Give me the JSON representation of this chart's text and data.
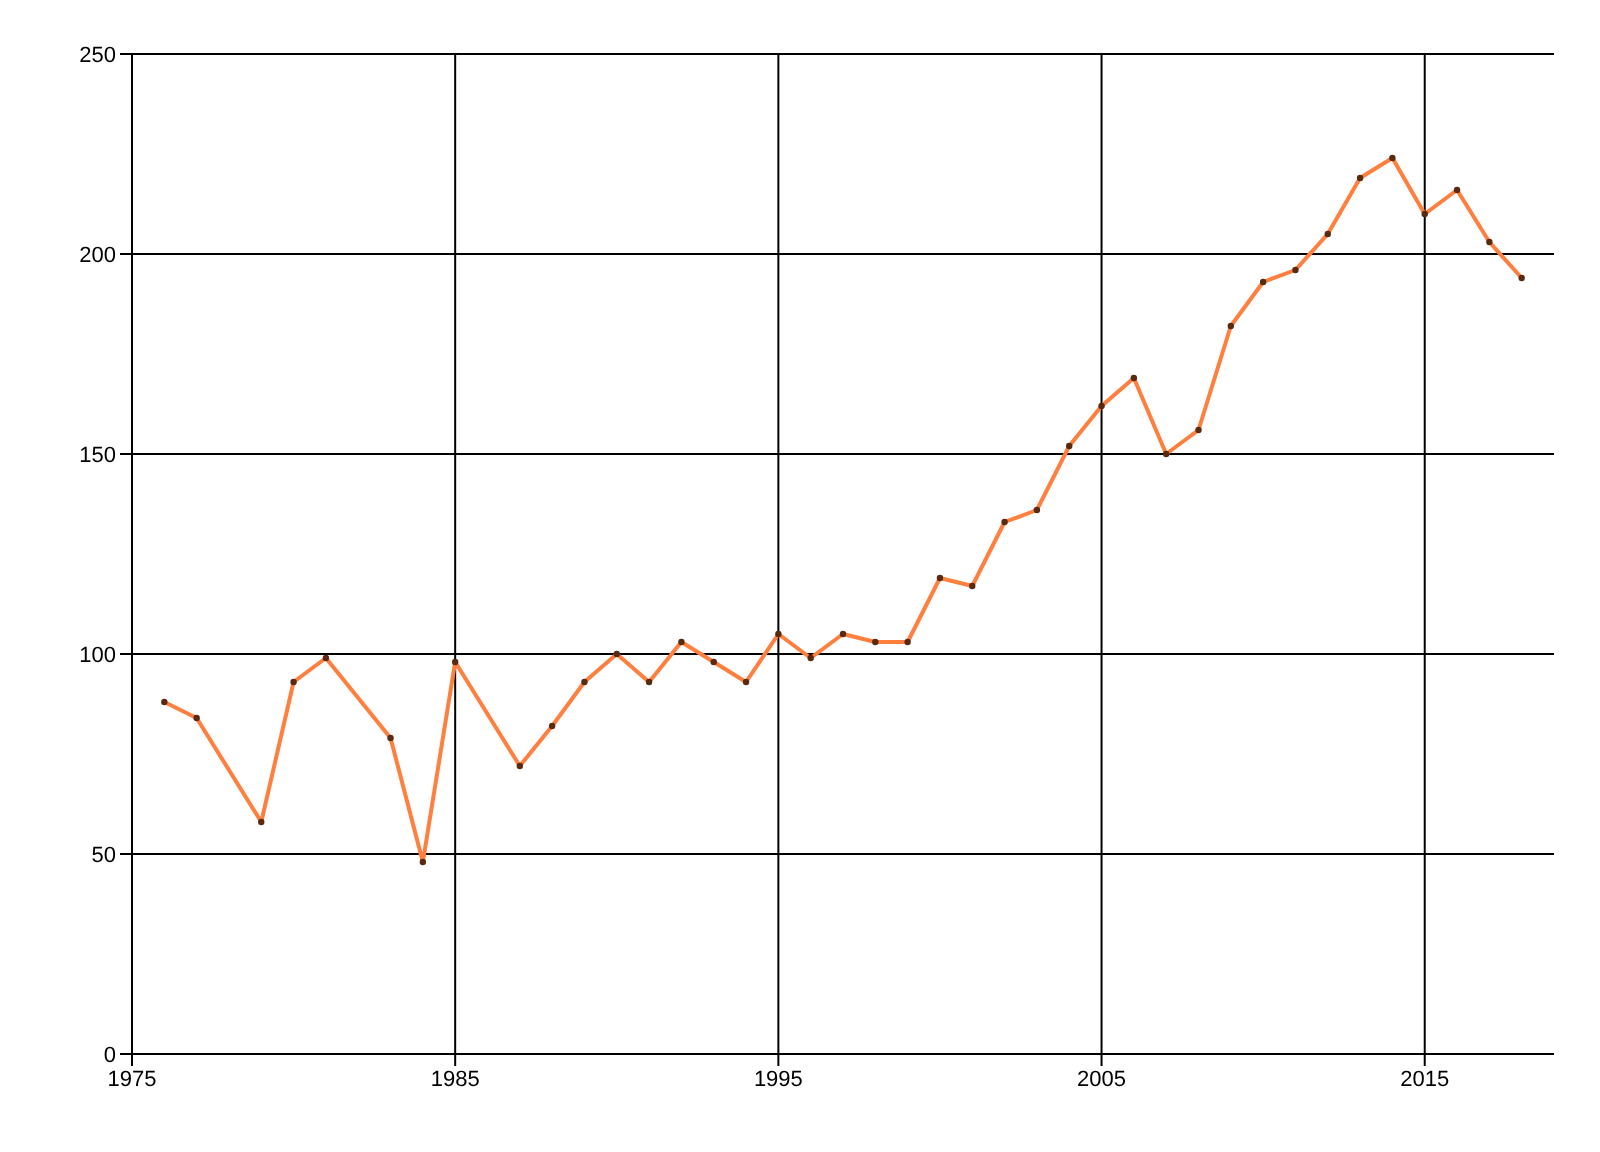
{
  "chart_data": {
    "type": "line",
    "x": [
      1976,
      1977,
      1979,
      1980,
      1981,
      1983,
      1984,
      1985,
      1987,
      1988,
      1989,
      1990,
      1991,
      1992,
      1993,
      1994,
      1995,
      1996,
      1997,
      1998,
      1999,
      2000,
      2001,
      2002,
      2003,
      2004,
      2005,
      2006,
      2007,
      2008,
      2009,
      2010,
      2011,
      2012,
      2013,
      2014,
      2015,
      2016,
      2017,
      2018
    ],
    "series": [
      {
        "color": "#ff7f3f",
        "values": [
          88,
          84,
          58,
          93,
          99,
          79,
          48,
          98,
          72,
          82,
          93,
          100,
          93,
          103,
          98,
          93,
          105,
          99,
          105,
          103,
          103,
          119,
          117,
          133,
          136,
          152,
          162,
          169,
          150,
          156,
          182,
          193,
          196,
          205,
          219,
          224,
          210,
          216,
          203,
          194
        ]
      }
    ],
    "xlim": [
      1975,
      2019
    ],
    "xticks": [
      1975,
      1985,
      1995,
      2005,
      2015
    ],
    "ylim": [
      0,
      250
    ],
    "yticks": [
      0,
      50,
      100,
      150,
      200,
      250
    ],
    "grid": true,
    "marker": "circle",
    "line_style": "solid"
  }
}
